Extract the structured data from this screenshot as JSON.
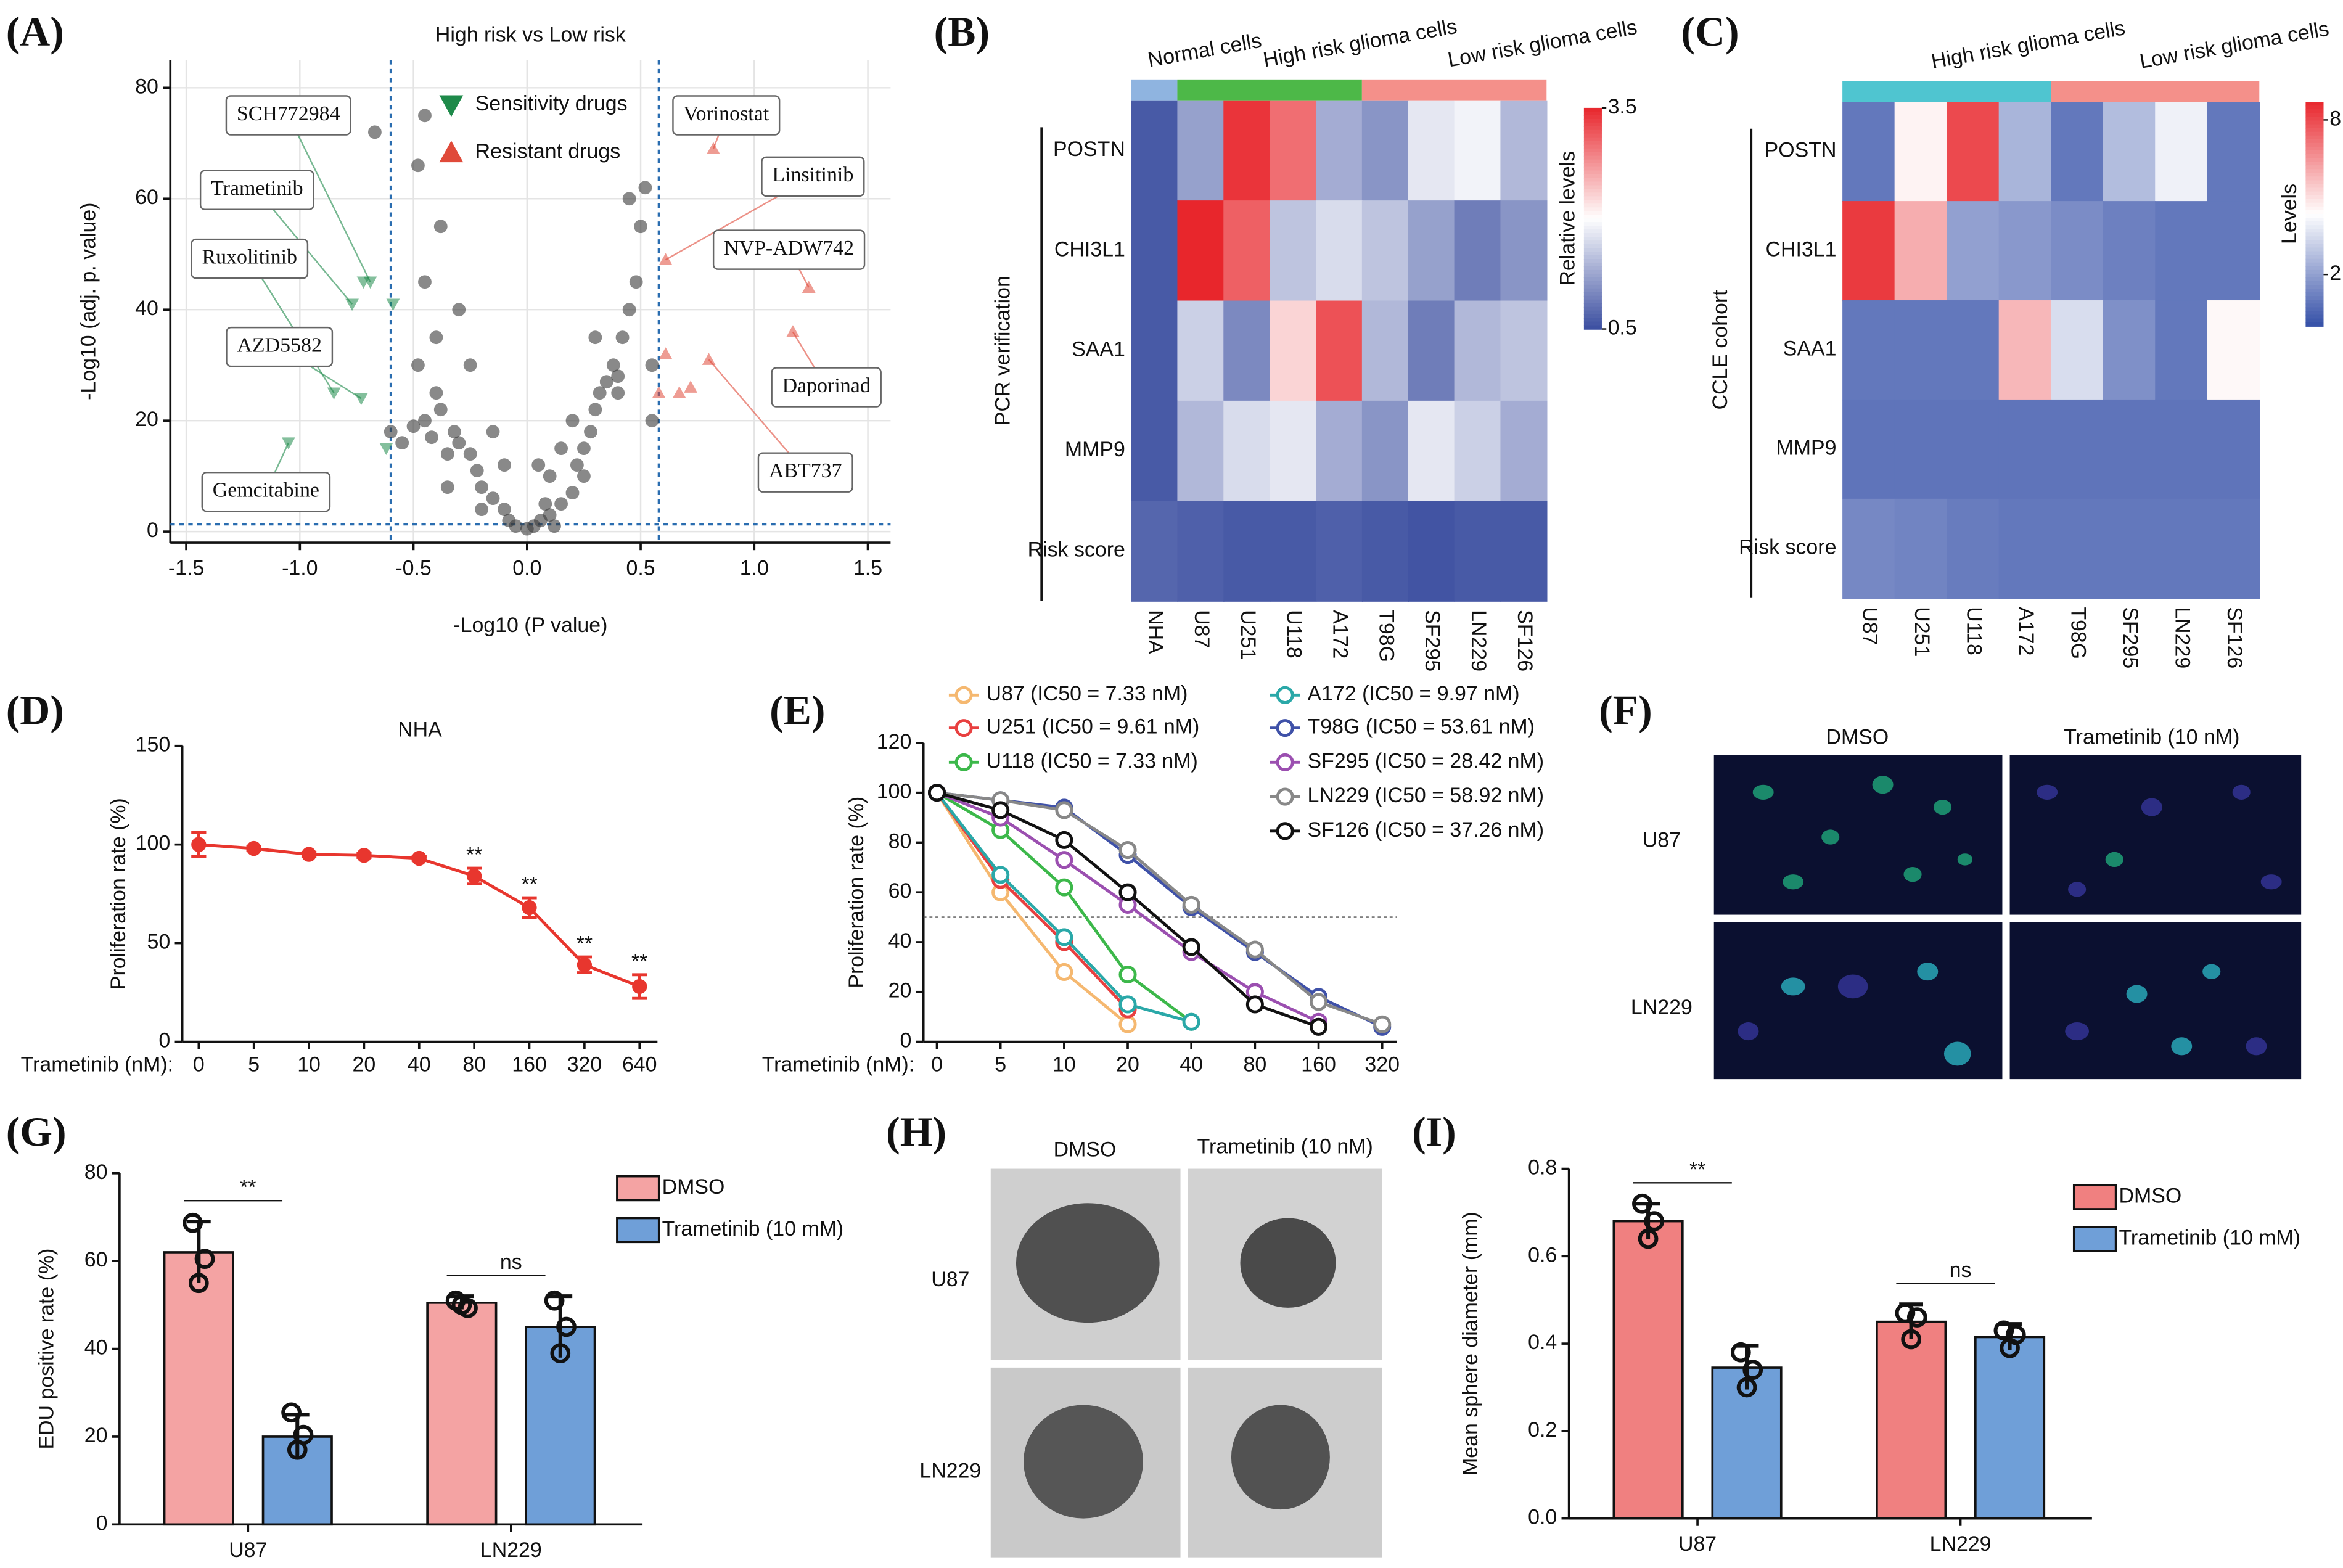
{
  "chart_data": [
    {
      "type": "scatter",
      "panel_label": "(A)",
      "title": "High risk vs Low risk",
      "x_label": "-Log10 (P value)",
      "y_label": "-Log10 (adj. p. value)",
      "xlim": [
        -1.57,
        1.6
      ],
      "ylim": [
        -2,
        85
      ],
      "xticks": [
        -1.5,
        {
          "value": -1,
          "label": "-1.0"
        },
        -0.5,
        {
          "value": 0,
          "label": "0.0"
        },
        0.5,
        {
          "value": 1,
          "label": "1.0"
        },
        1.5
      ],
      "yticks": [
        0,
        20,
        40,
        60,
        80
      ],
      "grid": true,
      "thresholds": {
        "x": [
          -0.6,
          0.58
        ],
        "y": [
          1.3
        ]
      },
      "series": [
        {
          "color": "#3a3a3a",
          "marker": "circle",
          "x": [
            -0.05,
            0,
            0.03,
            0.06,
            -0.08,
            0.1,
            -0.1,
            0.12,
            -0.15,
            0.15,
            -0.2,
            0.2,
            -0.22,
            0.22,
            -0.25,
            0.25,
            -0.3,
            0.28,
            -0.32,
            0.3,
            -0.35,
            0.32,
            -0.38,
            0.35,
            -0.4,
            0.38,
            -0.42,
            0.4,
            -0.45,
            0.42,
            -0.48,
            0.45,
            -0.5,
            0.48,
            -0.4,
            0.5,
            -0.3,
            0.52,
            -0.45,
            0.45,
            -0.38,
            0.4,
            -0.48,
            0.3,
            -0.45,
            0.2,
            -0.25,
            0.55,
            -0.15,
            0.1,
            -0.35,
            0.08,
            -0.55,
            0.55,
            -0.6,
            0.05,
            -0.1,
            0.15,
            0.25,
            -0.2,
            -0.67
          ],
          "values": [
            1,
            0.5,
            1,
            2,
            2,
            3,
            4,
            1,
            6,
            5,
            8,
            7,
            11,
            12,
            14,
            15,
            16,
            18,
            18,
            22,
            14,
            25,
            22,
            27,
            25,
            30,
            17,
            28,
            20,
            35,
            30,
            40,
            19,
            45,
            35,
            55,
            40,
            62,
            45,
            60,
            55,
            25,
            66,
            35,
            75,
            20,
            30,
            30,
            18,
            10,
            8,
            5,
            16,
            20,
            18,
            12,
            12,
            15,
            10,
            4,
            72
          ]
        },
        {
          "name": "Sensitivity drugs",
          "color": "#1e8a4a",
          "marker": "triangle-down",
          "x": [
            -0.69,
            -0.72,
            -0.77,
            -0.59,
            -0.85,
            -0.73,
            -1.05,
            -0.62
          ],
          "values": [
            45,
            45,
            41,
            41,
            25,
            24,
            16,
            15
          ],
          "point_labels": [
            "SCH772984",
            null,
            "Trametinib",
            null,
            "Ruxolitinib",
            "AZD5582",
            "Gemcitabine",
            null
          ]
        },
        {
          "name": "Resistant drugs",
          "color": "#e04a3a",
          "marker": "triangle-up",
          "x": [
            0.82,
            0.61,
            1.24,
            1.17,
            0.61,
            0.8,
            0.72,
            0.67,
            0.58
          ],
          "values": [
            69,
            49,
            44,
            36,
            32,
            31,
            26,
            25,
            25
          ],
          "point_labels": [
            "Vorinostat",
            "Linsitinib",
            "NVP-ADW742",
            "Daporinad",
            null,
            "ABT737",
            null,
            null,
            null
          ]
        }
      ]
    },
    {
      "type": "heatmap",
      "panel_label": "(B)",
      "side_label": "PCR verification",
      "columns": [
        "NHA",
        "U87",
        "U251",
        "U118",
        "A172",
        "T98G",
        "SF295",
        "LN229",
        "SF126"
      ],
      "rows": [
        "POSTN",
        "CHI3L1",
        "SAA1",
        "MMP9",
        "Risk score"
      ],
      "groups": [
        {
          "name": "Normal cells",
          "span": 1,
          "color": "#8fb4e0"
        },
        {
          "name": "High risk glioma cells",
          "span": 4,
          "color": "#4db848"
        },
        {
          "name": "Low risk glioma cells",
          "span": 4,
          "color": "#f4908a"
        }
      ],
      "values": [
        [
          0.6,
          1.2,
          3.4,
          3.0,
          1.3,
          1.1,
          1.8,
          1.9,
          1.4
        ],
        [
          0.6,
          3.5,
          3.1,
          1.5,
          1.7,
          1.5,
          1.2,
          0.9,
          1.1
        ],
        [
          0.6,
          1.6,
          1.0,
          2.3,
          3.2,
          1.4,
          0.9,
          1.4,
          1.5
        ],
        [
          0.6,
          1.4,
          1.7,
          1.8,
          1.3,
          1.1,
          1.8,
          1.6,
          1.3
        ],
        [
          0.7,
          0.65,
          0.6,
          0.6,
          0.65,
          0.6,
          0.55,
          0.6,
          0.6
        ]
      ],
      "colorbar_label": "Relative levels",
      "clim": [
        0.5,
        3.5
      ],
      "cticks": [
        3.5,
        0.5
      ],
      "colors": [
        "#3b4ea0",
        "#ffffff",
        "#e8262c"
      ]
    },
    {
      "type": "heatmap",
      "panel_label": "(C)",
      "side_label": "CCLE cohort",
      "columns": [
        "U87",
        "U251",
        "U118",
        "A172",
        "T98G",
        "SF295",
        "LN229",
        "SF126"
      ],
      "rows": [
        "POSTN",
        "CHI3L1",
        "SAA1",
        "MMP9",
        "Risk score"
      ],
      "groups": [
        {
          "name": "High risk glioma cells",
          "span": 4,
          "color": "#4fc5d0"
        },
        {
          "name": "Low risk glioma cells",
          "span": 4,
          "color": "#f4908a"
        }
      ],
      "values": [
        [
          1.0,
          4.6,
          8.0,
          2.5,
          1.0,
          2.7,
          4.0,
          1.0
        ],
        [
          8.3,
          6.0,
          2.0,
          1.8,
          1.5,
          1.2,
          1.0,
          1.0
        ],
        [
          1.0,
          1.0,
          1.0,
          5.8,
          3.5,
          1.6,
          1.0,
          4.5
        ],
        [
          0.9,
          0.9,
          0.9,
          0.9,
          0.9,
          0.9,
          0.9,
          0.9
        ],
        [
          1.4,
          1.3,
          1.1,
          1.0,
          1.0,
          1.0,
          1.0,
          1.0
        ]
      ],
      "colorbar_label": "Levels",
      "clim": [
        0,
        8.7
      ],
      "cticks": [
        8,
        2
      ],
      "colors": [
        "#3550a8",
        "#ffffff",
        "#e8262c"
      ]
    },
    {
      "type": "line",
      "panel_label": "(D)",
      "title": "NHA",
      "x_label": "Trametinib (nM):",
      "y_label": "Proliferation rate (%)",
      "categories": [
        "0",
        "5",
        "10",
        "20",
        "40",
        "80",
        "160",
        "320",
        "640"
      ],
      "ylim": [
        0,
        150
      ],
      "yticks": [
        0,
        50,
        100,
        150
      ],
      "series": [
        {
          "color": "#e8362e",
          "marker": "circle-filled",
          "values": [
            100,
            98,
            95,
            94.5,
            93,
            84,
            68,
            39,
            28
          ],
          "errors": [
            6,
            1,
            1,
            1,
            1,
            4,
            5,
            4,
            6
          ],
          "significance": [
            null,
            null,
            null,
            null,
            null,
            "**",
            "**",
            "**",
            "**"
          ]
        }
      ]
    },
    {
      "type": "line",
      "panel_label": "(E)",
      "x_label": "Trametinib (nM):",
      "y_label": "Proliferation rate (%)",
      "categories": [
        "0",
        "5",
        "10",
        "20",
        "40",
        "80",
        "160",
        "320"
      ],
      "ylim": [
        0,
        120
      ],
      "yticks": [
        0,
        20,
        40,
        60,
        80,
        100,
        120
      ],
      "reference_line": 50,
      "series": [
        {
          "name": "U87 (IC50 = 7.33 nM)",
          "color": "#f5b870",
          "marker": "circle-open",
          "values": [
            100,
            60,
            28,
            7,
            null,
            null,
            null,
            null
          ]
        },
        {
          "name": "U251 (IC50 = 9.61 nM)",
          "color": "#e84040",
          "marker": "circle-open",
          "values": [
            100,
            65,
            40,
            13,
            null,
            null,
            null,
            null
          ]
        },
        {
          "name": "U118 (IC50 = 7.33 nM)",
          "color": "#3cb84a",
          "marker": "circle-open",
          "values": [
            100,
            85,
            62,
            27,
            8,
            null,
            null,
            null
          ]
        },
        {
          "name": "A172 (IC50 = 9.97 nM)",
          "color": "#2aa8a8",
          "marker": "circle-open",
          "values": [
            100,
            67,
            42,
            15,
            8,
            null,
            null,
            null
          ]
        },
        {
          "name": "T98G (IC50 = 53.61 nM)",
          "color": "#3f51a8",
          "marker": "circle-open",
          "values": [
            100,
            97,
            94,
            75,
            54,
            36,
            18,
            6
          ]
        },
        {
          "name": "SF295 (IC50 = 28.42 nM)",
          "color": "#9b4fb0",
          "marker": "circle-open",
          "values": [
            100,
            90,
            73,
            55,
            36,
            20,
            8,
            null
          ]
        },
        {
          "name": "LN229 (IC50 = 58.92 nM)",
          "color": "#888888",
          "marker": "circle-open",
          "values": [
            100,
            97,
            93,
            77,
            55,
            37,
            16,
            7
          ]
        },
        {
          "name": "SF126 (IC50 = 37.26 nM)",
          "color": "#111111",
          "marker": "circle-open",
          "values": [
            100,
            93,
            81,
            60,
            38,
            15,
            6,
            null
          ]
        }
      ]
    },
    {
      "type": "bar",
      "panel_label": "(G)",
      "y_label": "EDU positive rate (%)",
      "categories": [
        "U87",
        "LN229"
      ],
      "ylim": [
        0,
        80
      ],
      "yticks": [
        0,
        20,
        40,
        60,
        80
      ],
      "series": [
        {
          "name": "DMSO",
          "color": "#f4a3a3",
          "values": [
            62,
            50.5
          ],
          "errors": [
            7,
            1.5
          ],
          "points": [
            [
              68.7,
              60.5,
              55
            ],
            [
              51,
              49.3,
              50
            ]
          ]
        },
        {
          "name": "Trametinib (10 mM)",
          "color": "#6f9fd8",
          "values": [
            20,
            45
          ],
          "errors": [
            5,
            7
          ],
          "points": [
            [
              25.5,
              20.4,
              17
            ],
            [
              51,
              45,
              39
            ]
          ]
        }
      ],
      "significance": [
        "**",
        "ns"
      ]
    },
    {
      "type": "bar",
      "panel_label": "(I)",
      "y_label": "Mean sphere diameter (mm)",
      "categories": [
        "U87",
        "LN229"
      ],
      "ylim": [
        0,
        0.8
      ],
      "yticks": [
        {
          "value": 0,
          "label": "0.0"
        },
        0.2,
        0.4,
        0.6,
        0.8
      ],
      "series": [
        {
          "name": "DMSO",
          "color": "#f08080",
          "values": [
            0.68,
            0.45
          ],
          "errors": [
            0.04,
            0.04
          ],
          "points": [
            [
              0.72,
              0.68,
              0.64
            ],
            [
              0.47,
              0.46,
              0.41
            ]
          ]
        },
        {
          "name": "Trametinib (10 mM)",
          "color": "#6f9fd8",
          "values": [
            0.345,
            0.415
          ],
          "errors": [
            0.05,
            0.03
          ],
          "points": [
            [
              0.38,
              0.34,
              0.3
            ],
            [
              0.43,
              0.42,
              0.39
            ]
          ]
        }
      ],
      "significance": [
        "**",
        "ns"
      ]
    }
  ],
  "image_panels": [
    {
      "panel_label": "(F)",
      "columns": [
        "DMSO",
        "Trametinib (10 nM)"
      ],
      "rows": [
        "U87",
        "LN229"
      ]
    },
    {
      "panel_label": "(H)",
      "columns": [
        "DMSO",
        "Trametinib (10 nM)"
      ],
      "rows": [
        "U87",
        "LN229"
      ]
    }
  ]
}
